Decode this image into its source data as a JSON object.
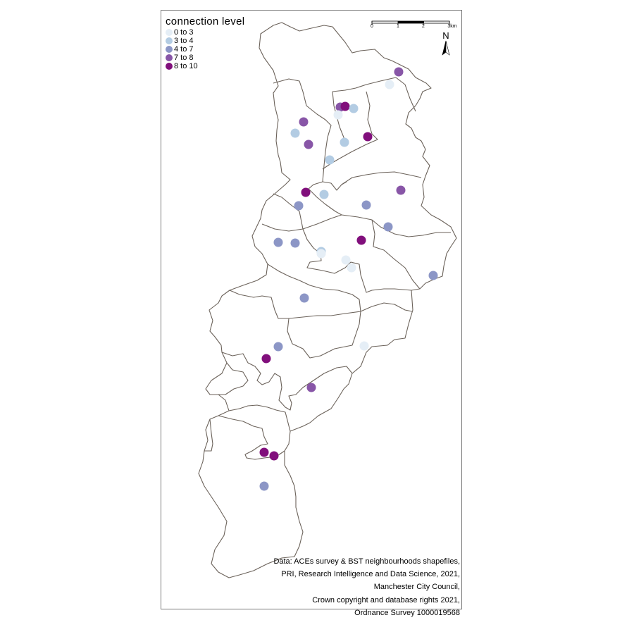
{
  "legend": {
    "title": "connection  level",
    "items": [
      {
        "label": "0 to 3",
        "color": "#e5eef6"
      },
      {
        "label": "3 to 4",
        "color": "#b3cce3"
      },
      {
        "label": "4 to 7",
        "color": "#8c96c6"
      },
      {
        "label": "7 to 8",
        "color": "#8856a7"
      },
      {
        "label": "8 to 10",
        "color": "#810f7c"
      }
    ]
  },
  "scale_bar": {
    "labels": [
      "0",
      "1",
      "2",
      "3km"
    ]
  },
  "north_arrow": {
    "label": "N"
  },
  "credits": {
    "lines": [
      "Data: ACEs survey & BST neighbourhoods shapefiles,",
      "PRI, Research Intelligence and Data Science, 2021,",
      "Manchester City Council,",
      "Crown copyright and database rights 2021,",
      "Ordnance Survey 1000019568"
    ]
  },
  "colors": {
    "boundary": "#6b625a",
    "frame": "#7a7a7a"
  }
}
